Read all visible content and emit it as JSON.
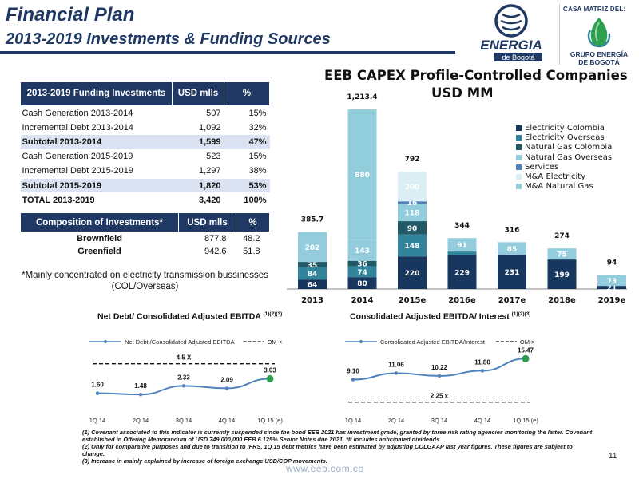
{
  "header": {
    "title": "Financial Plan",
    "subtitle": "2013-2019  Investments & Funding Sources"
  },
  "logos": {
    "energia_name": "ENERGIA",
    "energia_sub": "de Bogotá",
    "casa_matriz": "CASA MATRIZ DEL:",
    "geb_line1": "GRUPO ENERGÍA",
    "geb_line2": "DE BOGOTÁ"
  },
  "funding_table": {
    "headers": [
      "2013-2019 Funding Investments",
      "USD mlls",
      "%"
    ],
    "rows": [
      {
        "label": "Cash Generation 2013-2014",
        "usd": "507",
        "pct": "15%",
        "kind": "normal"
      },
      {
        "label": "Incremental Debt 2013-2014",
        "usd": "1,092",
        "pct": "32%",
        "kind": "normal"
      },
      {
        "label": "Subtotal 2013-2014",
        "usd": "1,599",
        "pct": "47%",
        "kind": "subtotal"
      },
      {
        "label": "Cash Generation 2015-2019",
        "usd": "523",
        "pct": "15%",
        "kind": "normal"
      },
      {
        "label": "Incremental Debt 2015-2019",
        "usd": "1,297",
        "pct": "38%",
        "kind": "normal"
      },
      {
        "label": "Subtotal 2015-2019",
        "usd": "1,820",
        "pct": "53%",
        "kind": "subtotal"
      },
      {
        "label": "TOTAL 2013-2019",
        "usd": "3,420",
        "pct": "100%",
        "kind": "total"
      }
    ]
  },
  "composition_table": {
    "headers": [
      "Composition of Investments*",
      "USD mlls",
      "%"
    ],
    "rows": [
      {
        "label": "Brownfield",
        "usd": "877.8",
        "pct": "48.2"
      },
      {
        "label": "Greenfield",
        "usd": "942.6",
        "pct": "51.8"
      }
    ],
    "note": "*Mainly concentrated on electricity transmission bussinesses (COL/Overseas)"
  },
  "colors": {
    "navy": "#1f3864",
    "electricity_colombia": "#17375e",
    "electricity_overseas": "#31849b",
    "natural_gas_colombia": "#215967",
    "natural_gas_overseas": "#93cddd",
    "services": "#4f81bd",
    "ma_electricity": "#dbeef4",
    "ma_natural_gas": "#92cddc",
    "line": "#4f81bd",
    "highlight": "#2e9e4f"
  },
  "chart_data": [
    {
      "type": "bar",
      "stacked": true,
      "title": "EEB CAPEX Profile-Controlled Companies",
      "unit": "USD MM",
      "categories": [
        "2013",
        "2014",
        "2015e",
        "2016e",
        "2017e",
        "2018e",
        "2019e"
      ],
      "totals": [
        "385.7",
        "1,213.4",
        "792",
        "344",
        "316",
        "274",
        "94"
      ],
      "legend_position": "right",
      "series": [
        {
          "name": "Electricity Colombia",
          "values": [
            64,
            80,
            220,
            229,
            231,
            199,
            21
          ],
          "labels": [
            "64",
            "80",
            "220",
            "229",
            "231",
            "199",
            "21"
          ]
        },
        {
          "name": "Electricity Overseas",
          "values": [
            84,
            74,
            148,
            24,
            0,
            0,
            0
          ],
          "labels": [
            "84",
            "74",
            "148",
            "",
            "",
            "",
            ""
          ]
        },
        {
          "name": "Natural Gas Colombia",
          "values": [
            35,
            36,
            90,
            0,
            0,
            0,
            0
          ],
          "labels": [
            "35",
            "36",
            "90",
            "",
            "",
            "",
            ""
          ]
        },
        {
          "name": "Natural Gas Overseas",
          "values": [
            202,
            143,
            118,
            91,
            85,
            75,
            73
          ],
          "labels": [
            "202",
            "143",
            "118",
            "91",
            "85",
            "75",
            "73"
          ]
        },
        {
          "name": "Services",
          "values": [
            0,
            0,
            16,
            0,
            0,
            0,
            0
          ],
          "labels": [
            "",
            "",
            "16",
            "",
            "",
            "",
            ""
          ]
        },
        {
          "name": "M&A Electricity",
          "values": [
            0,
            0,
            200,
            0,
            0,
            0,
            0
          ],
          "labels": [
            "",
            "",
            "200",
            "",
            "",
            "",
            ""
          ]
        },
        {
          "name": "M&A Natural Gas",
          "values": [
            0,
            880,
            0,
            0,
            0,
            0,
            0
          ],
          "labels": [
            "",
            "880",
            "",
            "",
            "",
            "",
            ""
          ]
        }
      ]
    },
    {
      "type": "line",
      "title": "Net Debt/ Consolidated Adjusted EBITDA",
      "title_sup": "(1)(2)(3)",
      "categories": [
        "1Q 14",
        "2Q 14",
        "3Q 14",
        "4Q 14",
        "1Q 15 (e)"
      ],
      "values": [
        1.6,
        1.48,
        2.33,
        2.09,
        3.03
      ],
      "labels": [
        "1.60",
        "1.48",
        "2.33",
        "2.09",
        "3.03"
      ],
      "series_name": "Net Debt /Consolidated Adjusted EBITDA",
      "covenant_name": "OM <",
      "covenant_value": 4.5,
      "covenant_label": "4.5 X"
    },
    {
      "type": "line",
      "title": "Consolidated Adjusted EBITDA/ Interest",
      "title_sup": "(1)(2)(3)",
      "categories": [
        "1Q 14",
        "2Q 14",
        "3Q 14",
        "4Q 14",
        "1Q 15 (e)"
      ],
      "values": [
        9.1,
        11.06,
        10.22,
        11.8,
        15.47
      ],
      "labels": [
        "9.10",
        "11.06",
        "10.22",
        "11.80",
        "15.47"
      ],
      "series_name": "Consolidated Adjusted EBITDA/Interest",
      "covenant_name": "OM >",
      "covenant_value": 2.25,
      "covenant_label": "2.25 x"
    }
  ],
  "footnotes": [
    "(1) Covenant associated to this indicator is currently suspended since the bond EEB 2021 has investment grade, granted by three risk rating agencies monitoring the latter. Covenant established in Offering Memorandum of USD.749,000,000 EEB 6.125% Senior Notes due 2021. *It includes anticipated dividends.",
    "(2) Only for comparative purposes and due to transition to IFRS, 1Q 15 debt metrics have been estimated by adjusting COLGAAP last year figures. These figures are subject to change.",
    "(3) Increase in mainly explained by increase of foreign exchange USD/COP movements."
  ],
  "page_number": "11",
  "website": "www.eeb.com.co"
}
